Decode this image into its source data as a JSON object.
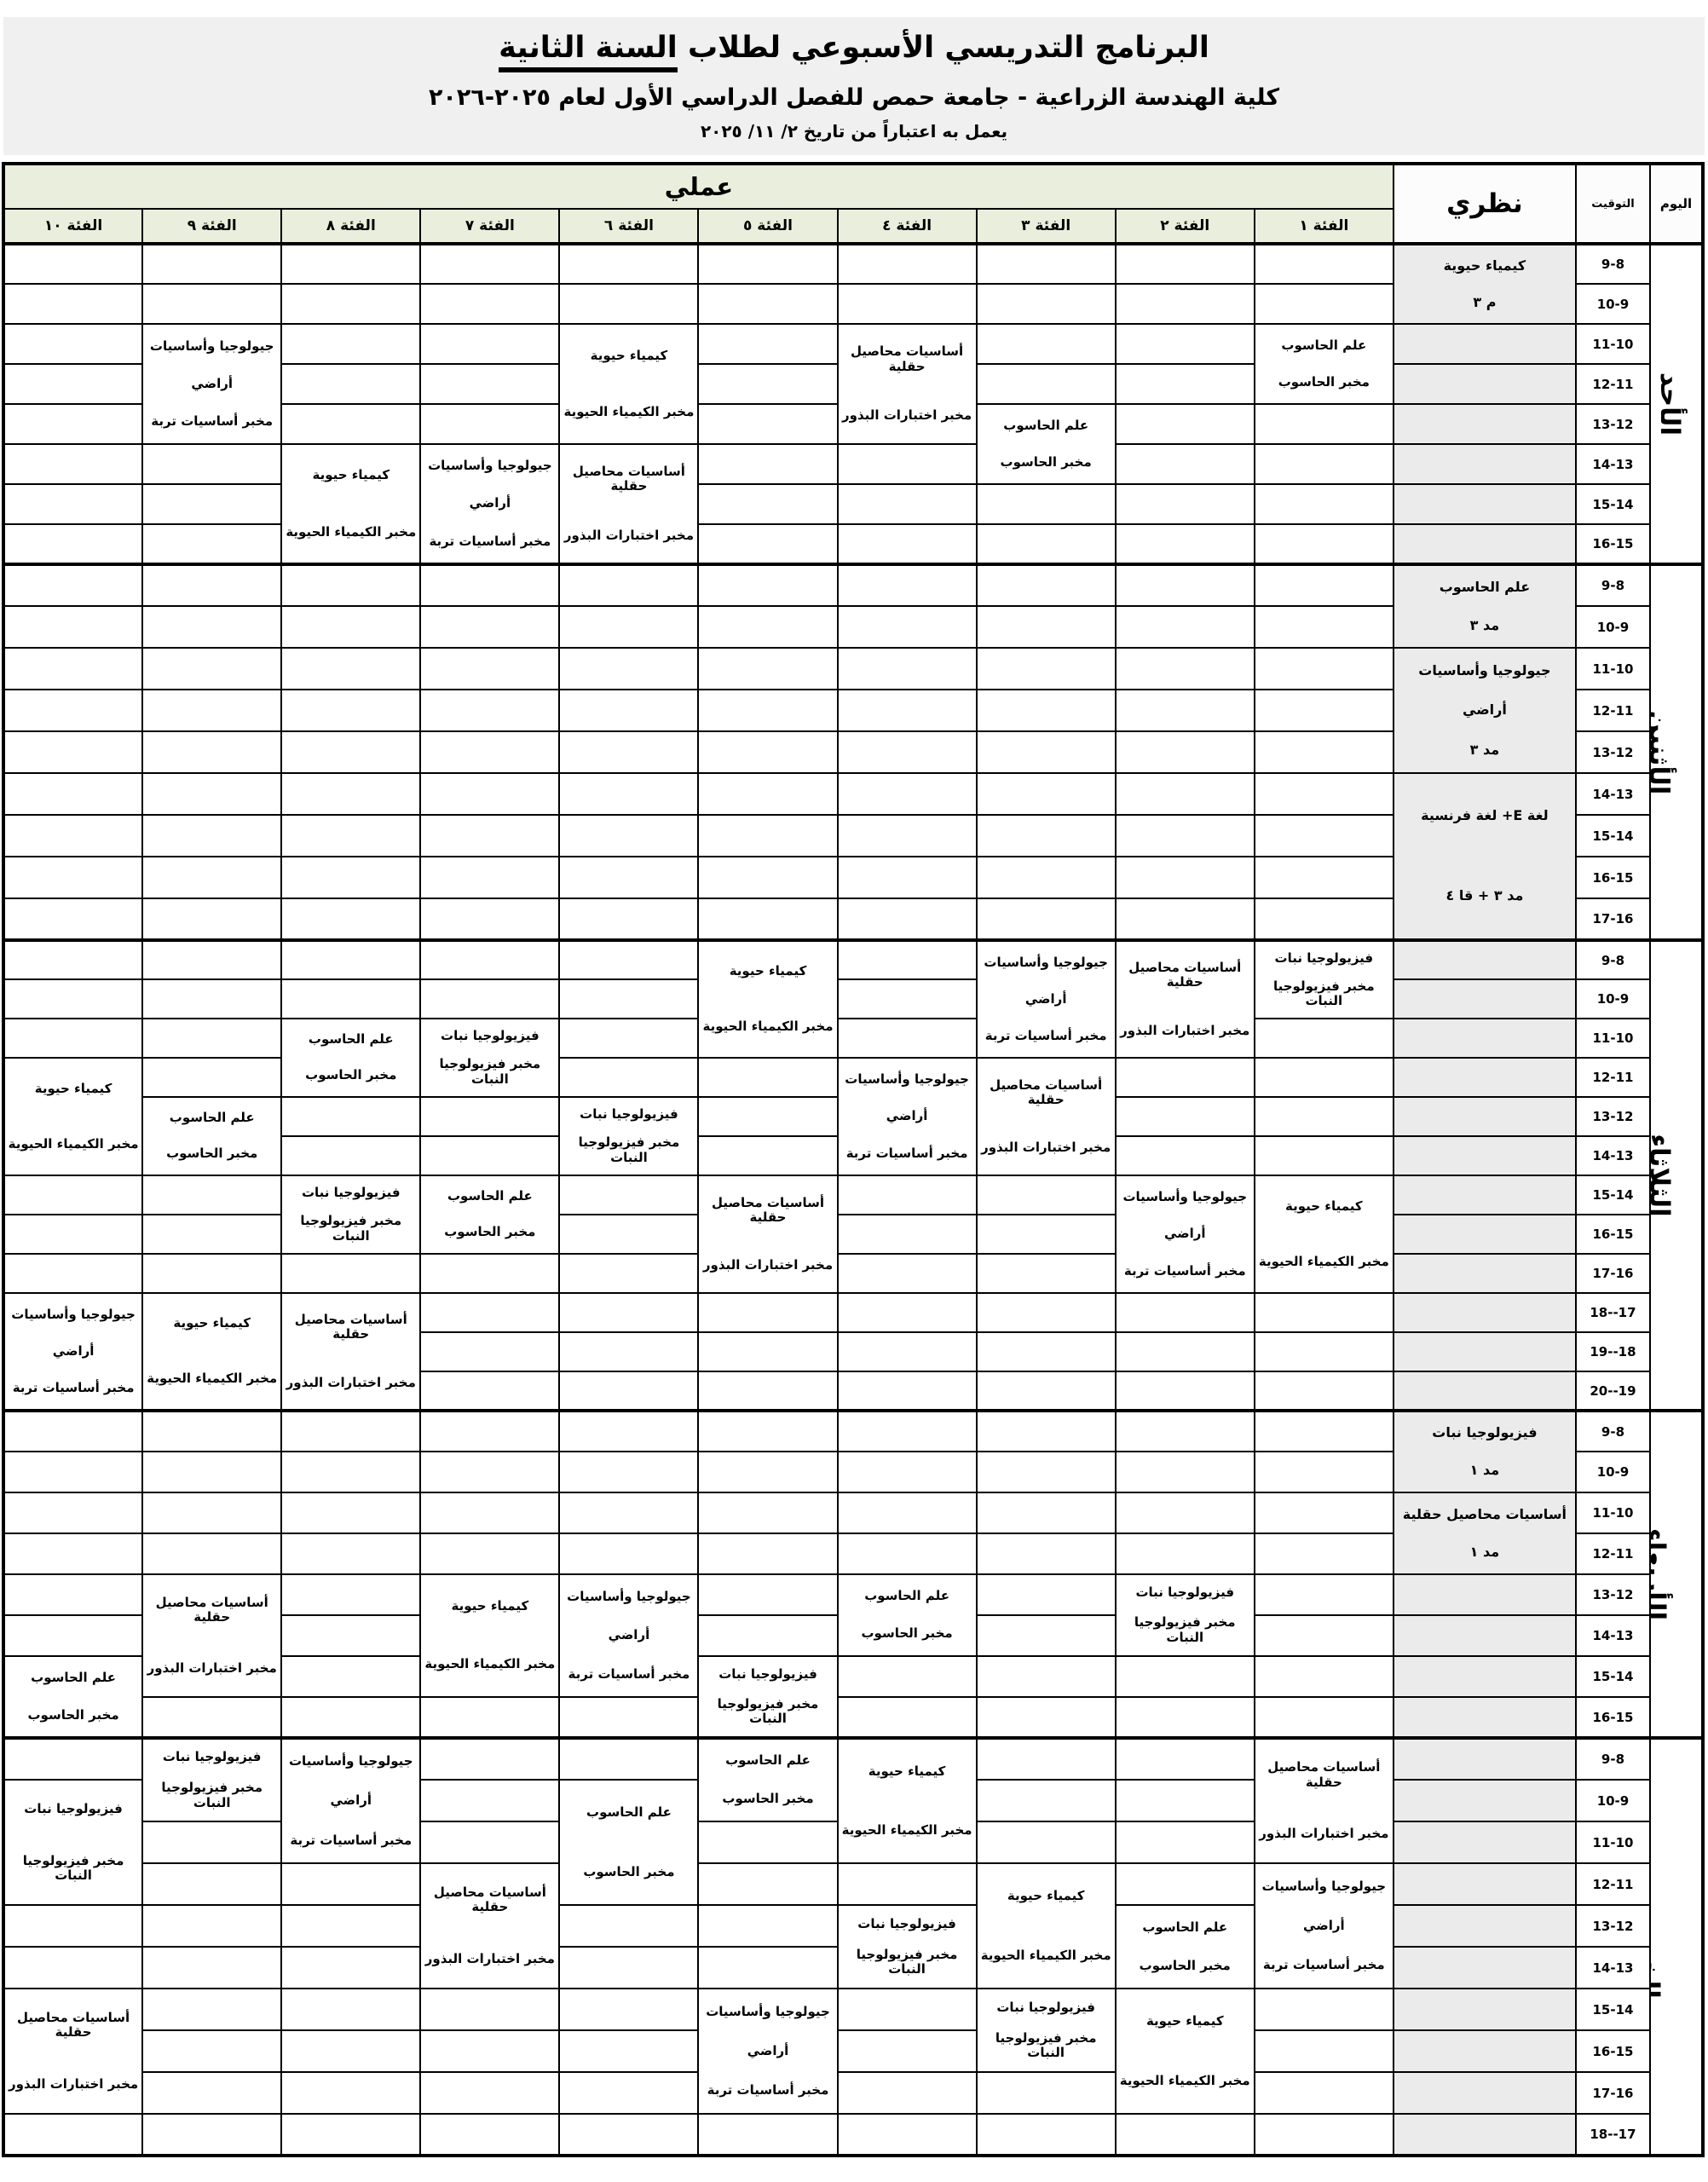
{
  "page": {
    "title_main": "البرنامج التدريسي الأسبوعي  لطلاب",
    "title_underlined": "السنة الثانية",
    "subtitle": "كلية الهندسة الزراعية - جامعة حمص للفصل الدراسي الأول لعام ٢٠٢٥-٢٠٢٦",
    "note": "يعمل به اعتباراً من تاريخ ٢/ ١١/ ٢٠٢٥"
  },
  "colors": {
    "header_green": "#e9efdc",
    "theory_gray": "#ebebeb",
    "band_gray": "#f0f0f0",
    "border_black": "#000000"
  },
  "table": {
    "header": {
      "practical": "عملي",
      "theory": "نظري",
      "time": "التوقيت",
      "day": "اليوم"
    },
    "group_labels": [
      "الفئة ١",
      "الفئة ٢",
      "الفئة ٣",
      "الفئة ٤",
      "الفئة ٥",
      "الفئة ٦",
      "الفئة ٧",
      "الفئة ٨",
      "الفئة ٩",
      "الفئة ١٠"
    ],
    "subjects": {
      "biochem": [
        "كيمياء حيوية",
        "مخبر الكيمياء الحيوية"
      ],
      "plantphys": [
        "فيزيولوجيا نبات",
        "مخبر فيزيولوجيا النبات"
      ],
      "computer": [
        "علم الحاسوب",
        "مخبر الحاسوب"
      ],
      "crops": [
        "أساسيات محاصيل حقلية",
        "مخبر اختبارات البذور"
      ],
      "geology": [
        "جيولوجيا وأساسيات",
        "أراضي",
        "مخبر أساسيات تربة"
      ]
    },
    "days": [
      {
        "name": "الأحد",
        "times": [
          "9-8",
          "10-9",
          "11-10",
          "12-11",
          "13-12",
          "14-13",
          "15-14",
          "16-15"
        ],
        "theory_cells": [
          {
            "r": 1,
            "s": 2,
            "lines": [
              "كيمياء حيوية",
              "م ٣"
            ]
          }
        ],
        "group_cells": [
          {
            "g": 1,
            "r": 3,
            "s": 2,
            "subj": "computer"
          },
          {
            "g": 3,
            "r": 5,
            "s": 2,
            "subj": "computer"
          },
          {
            "g": 4,
            "r": 3,
            "s": 3,
            "subj": "crops"
          },
          {
            "g": 6,
            "r": 3,
            "s": 3,
            "subj": "biochem"
          },
          {
            "g": 6,
            "r": 6,
            "s": 3,
            "subj": "crops"
          },
          {
            "g": 7,
            "r": 6,
            "s": 3,
            "subj": "geology"
          },
          {
            "g": 8,
            "r": 6,
            "s": 3,
            "subj": "biochem"
          },
          {
            "g": 9,
            "r": 3,
            "s": 3,
            "subj": "geology"
          }
        ]
      },
      {
        "name": "الأثنين",
        "times": [
          "9-8",
          "10-9",
          "11-10",
          "12-11",
          "13-12",
          "14-13",
          "15-14",
          "16-15",
          "17-16"
        ],
        "theory_cells": [
          {
            "r": 1,
            "s": 2,
            "lines": [
              "علم الحاسوب",
              "مد ٣"
            ]
          },
          {
            "r": 3,
            "s": 3,
            "lines": [
              "جيولوجيا وأساسيات",
              "أراضي",
              "مد ٣"
            ]
          },
          {
            "r": 6,
            "s": 4,
            "lines": [
              "لغة E+ لغة فرنسية",
              "مد ٣ + قا ٤"
            ]
          }
        ],
        "group_cells": []
      },
      {
        "name": "الثلاثاء",
        "times": [
          "9-8",
          "10-9",
          "11-10",
          "12-11",
          "13-12",
          "14-13",
          "15-14",
          "16-15",
          "17-16",
          "18--17",
          "19--18",
          "20--19"
        ],
        "theory_cells": [],
        "group_cells": [
          {
            "g": 1,
            "r": 1,
            "s": 2,
            "subj": "plantphys"
          },
          {
            "g": 1,
            "r": 7,
            "s": 3,
            "subj": "biochem"
          },
          {
            "g": 2,
            "r": 1,
            "s": 3,
            "subj": "crops"
          },
          {
            "g": 2,
            "r": 7,
            "s": 3,
            "subj": "geology"
          },
          {
            "g": 3,
            "r": 1,
            "s": 3,
            "subj": "geology"
          },
          {
            "g": 3,
            "r": 4,
            "s": 3,
            "subj": "crops"
          },
          {
            "g": 4,
            "r": 4,
            "s": 3,
            "subj": "geology"
          },
          {
            "g": 5,
            "r": 1,
            "s": 3,
            "subj": "biochem"
          },
          {
            "g": 5,
            "r": 7,
            "s": 3,
            "subj": "crops"
          },
          {
            "g": 6,
            "r": 5,
            "s": 2,
            "subj": "plantphys"
          },
          {
            "g": 7,
            "r": 3,
            "s": 2,
            "subj": "plantphys"
          },
          {
            "g": 7,
            "r": 7,
            "s": 2,
            "subj": "computer"
          },
          {
            "g": 8,
            "r": 3,
            "s": 2,
            "subj": "computer"
          },
          {
            "g": 8,
            "r": 7,
            "s": 2,
            "subj": "plantphys"
          },
          {
            "g": 8,
            "r": 10,
            "s": 3,
            "subj": "crops"
          },
          {
            "g": 9,
            "r": 5,
            "s": 2,
            "subj": "computer"
          },
          {
            "g": 9,
            "r": 10,
            "s": 3,
            "subj": "biochem"
          },
          {
            "g": 10,
            "r": 4,
            "s": 3,
            "subj": "biochem"
          },
          {
            "g": 10,
            "r": 10,
            "s": 3,
            "subj": "geology"
          }
        ]
      },
      {
        "name": "الأربعاء",
        "times": [
          "9-8",
          "10-9",
          "11-10",
          "12-11",
          "13-12",
          "14-13",
          "15-14",
          "16-15"
        ],
        "theory_cells": [
          {
            "r": 1,
            "s": 2,
            "lines": [
              "فيزيولوجيا نبات",
              "مد ١"
            ]
          },
          {
            "r": 3,
            "s": 2,
            "lines": [
              "أساسيات محاصيل حقلية",
              "مد ١"
            ]
          }
        ],
        "group_cells": [
          {
            "g": 2,
            "r": 5,
            "s": 2,
            "subj": "plantphys"
          },
          {
            "g": 4,
            "r": 5,
            "s": 2,
            "subj": "computer"
          },
          {
            "g": 5,
            "r": 7,
            "s": 2,
            "subj": "plantphys"
          },
          {
            "g": 6,
            "r": 5,
            "s": 3,
            "subj": "geology"
          },
          {
            "g": 7,
            "r": 5,
            "s": 3,
            "subj": "biochem"
          },
          {
            "g": 9,
            "r": 5,
            "s": 3,
            "subj": "crops"
          },
          {
            "g": 10,
            "r": 7,
            "s": 2,
            "subj": "computer"
          }
        ]
      },
      {
        "name": "الخميس",
        "times": [
          "9-8",
          "10-9",
          "11-10",
          "12-11",
          "13-12",
          "14-13",
          "15-14",
          "16-15",
          "17-16",
          "18--17"
        ],
        "theory_cells": [],
        "group_cells": [
          {
            "g": 1,
            "r": 1,
            "s": 3,
            "subj": "crops"
          },
          {
            "g": 1,
            "r": 4,
            "s": 3,
            "subj": "geology"
          },
          {
            "g": 2,
            "r": 5,
            "s": 2,
            "subj": "computer"
          },
          {
            "g": 2,
            "r": 7,
            "s": 3,
            "subj": "biochem"
          },
          {
            "g": 3,
            "r": 4,
            "s": 3,
            "subj": "biochem"
          },
          {
            "g": 3,
            "r": 7,
            "s": 2,
            "subj": "plantphys"
          },
          {
            "g": 4,
            "r": 1,
            "s": 3,
            "subj": "biochem"
          },
          {
            "g": 4,
            "r": 5,
            "s": 2,
            "subj": "plantphys"
          },
          {
            "g": 5,
            "r": 1,
            "s": 2,
            "subj": "computer"
          },
          {
            "g": 5,
            "r": 7,
            "s": 3,
            "subj": "geology"
          },
          {
            "g": 6,
            "r": 2,
            "s": 3,
            "subj": "computer"
          },
          {
            "g": 7,
            "r": 4,
            "s": 3,
            "subj": "crops"
          },
          {
            "g": 8,
            "r": 1,
            "s": 3,
            "subj": "geology"
          },
          {
            "g": 9,
            "r": 1,
            "s": 2,
            "subj": "plantphys"
          },
          {
            "g": 10,
            "r": 2,
            "s": 3,
            "subj": "plantphys"
          },
          {
            "g": 10,
            "r": 7,
            "s": 3,
            "subj": "crops"
          }
        ]
      }
    ]
  }
}
